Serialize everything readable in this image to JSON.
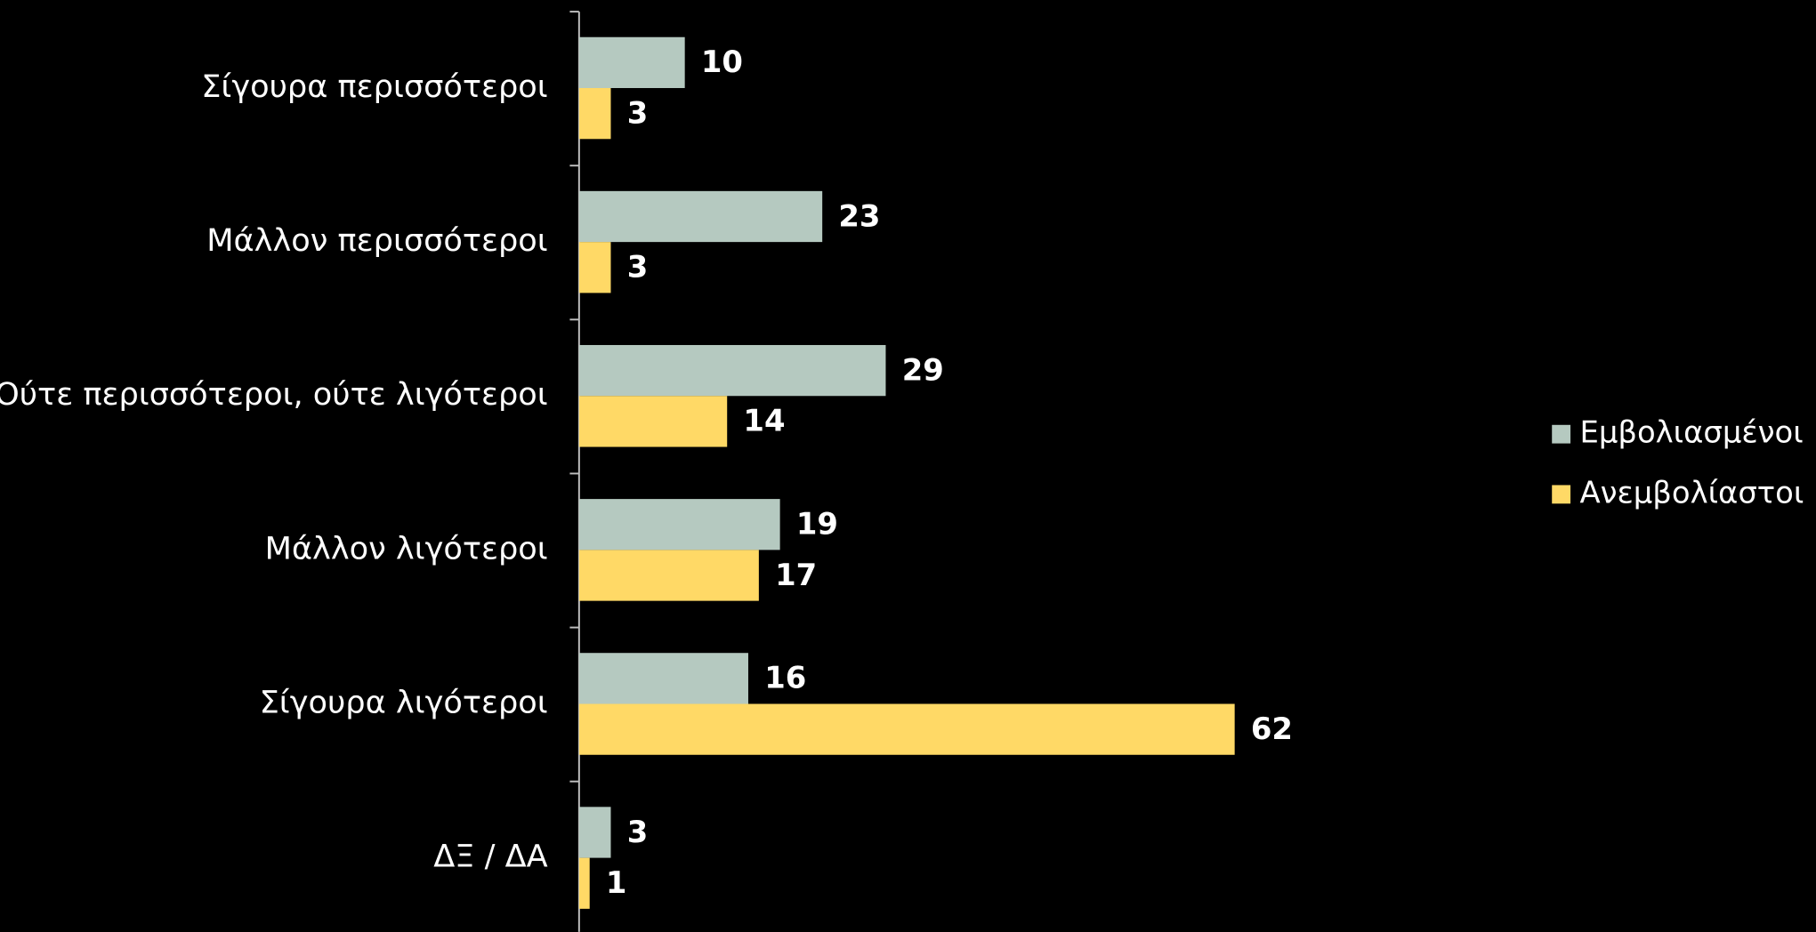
{
  "chart_data": {
    "type": "bar",
    "orientation": "horizontal",
    "categories": [
      "Σίγουρα περισσότεροι",
      "Μάλλον περισσότεροι",
      "Ούτε περισσότεροι, ούτε λιγότεροι",
      "Μάλλον λιγότεροι",
      "Σίγουρα λιγότεροι",
      "ΔΞ / ΔΑ"
    ],
    "series": [
      {
        "name": "Εμβολιασμένοι",
        "color": "#b5c9c0",
        "values": [
          10,
          23,
          29,
          19,
          16,
          3
        ]
      },
      {
        "name": "Ανεμβολίαστοι",
        "color": "#ffd966",
        "values": [
          3,
          3,
          14,
          17,
          62,
          1
        ]
      }
    ],
    "xlim": [
      0,
      100
    ],
    "legend": "right",
    "grid": false
  }
}
